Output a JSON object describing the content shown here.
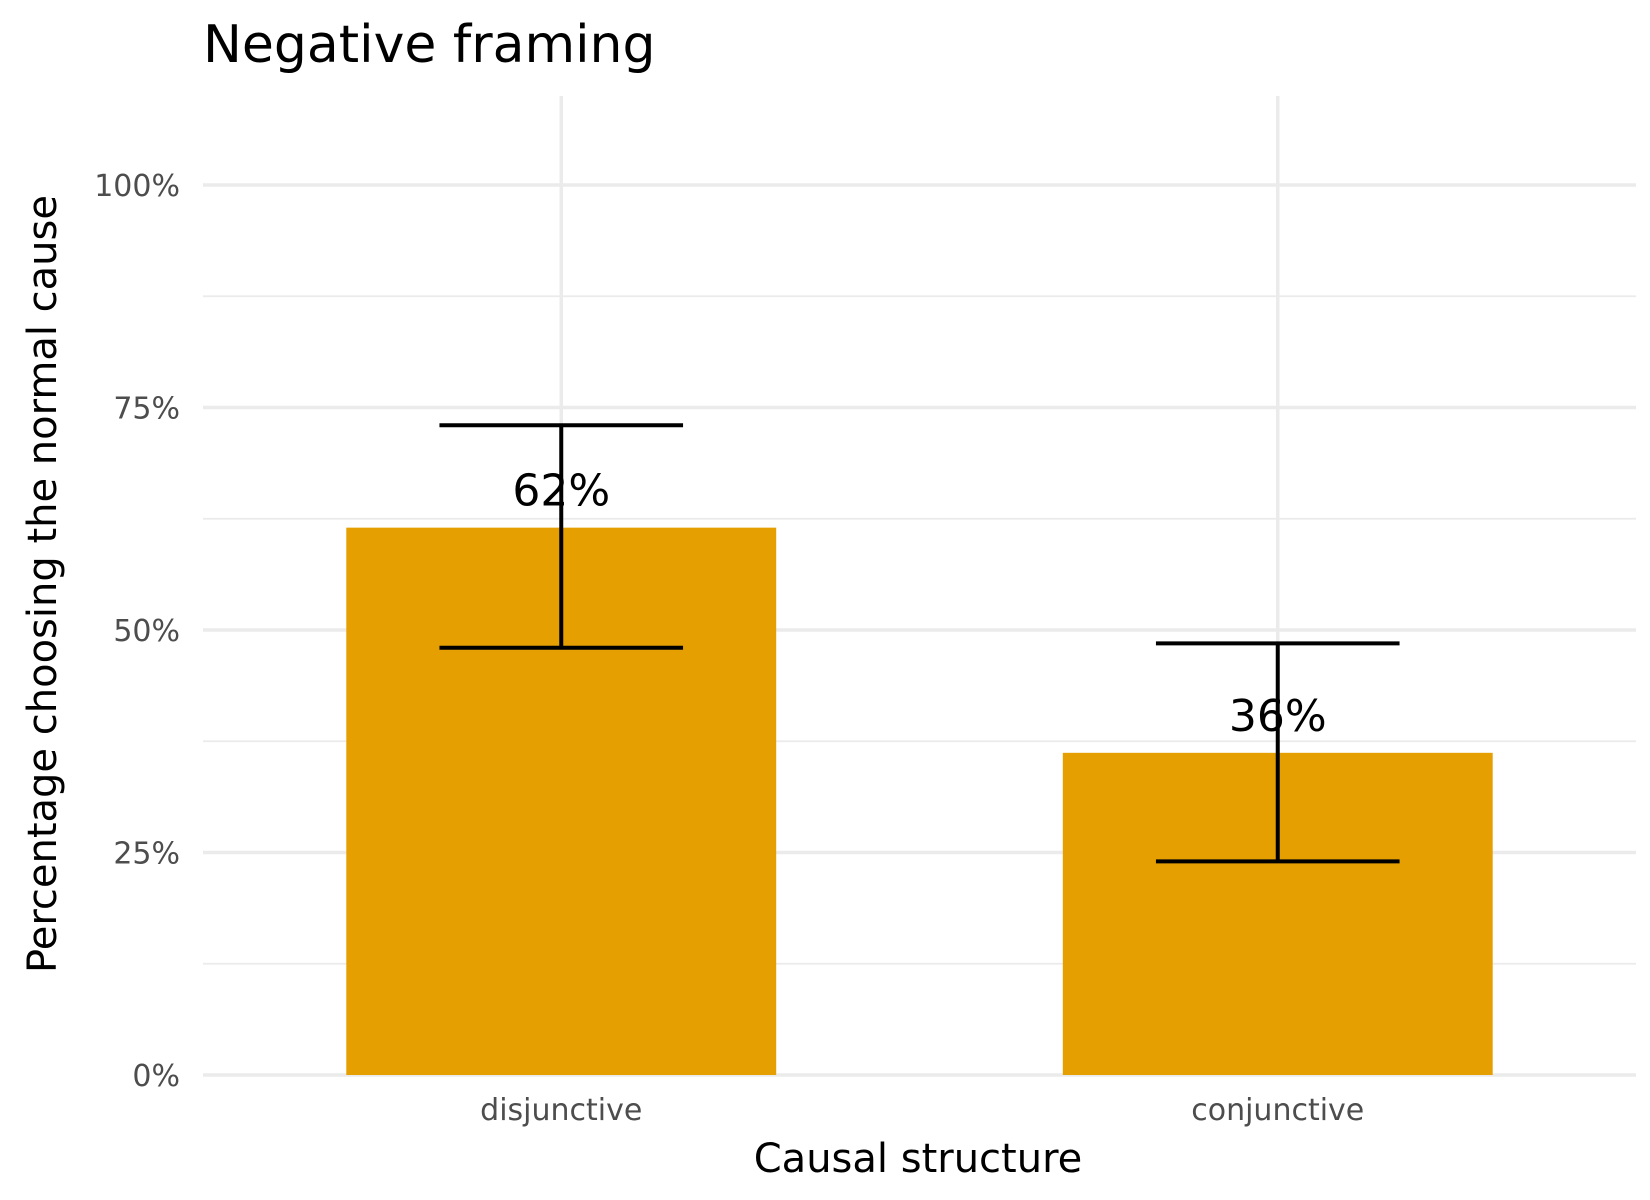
{
  "chart_data": {
    "type": "bar",
    "title": "Negative framing",
    "xlabel": "Causal structure",
    "ylabel": "Percentage choosing the normal cause",
    "categories": [
      "disjunctive",
      "conjunctive"
    ],
    "values": [
      0.615,
      0.362
    ],
    "data_labels": [
      "62%",
      "36%"
    ],
    "error_bars": [
      {
        "lower": 0.48,
        "upper": 0.73
      },
      {
        "lower": 0.24,
        "upper": 0.485
      }
    ],
    "ylim": [
      0,
      1.1
    ],
    "y_ticks": [
      0,
      0.25,
      0.5,
      0.75,
      1.0
    ],
    "y_tick_labels": [
      "0%",
      "25%",
      "50%",
      "75%",
      "100%"
    ],
    "y_minor_ticks": [
      0.125,
      0.375,
      0.625,
      0.875
    ],
    "grid": true,
    "legend": "none",
    "colors": {
      "bar": "#E69F00",
      "error_bar": "#000000",
      "grid": "#ebebeb"
    }
  }
}
